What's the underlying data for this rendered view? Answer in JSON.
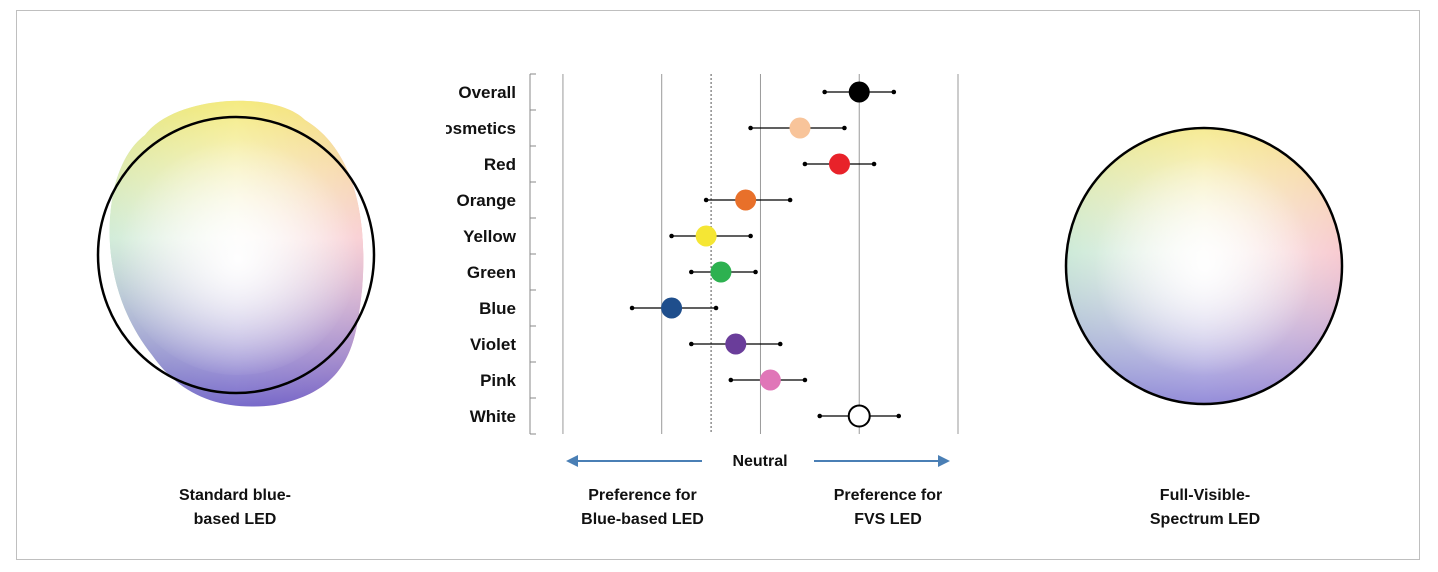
{
  "captions": {
    "left": [
      "Standard blue-",
      "based LED"
    ],
    "right": [
      "Full-Visible-",
      "Spectrum LED"
    ],
    "neutral": "Neutral",
    "pref_blue": [
      "Preference for",
      "Blue-based LED"
    ],
    "pref_fvs": [
      "Preference for",
      "FVS LED"
    ]
  },
  "colors": {
    "arrow": "#4a7fb5",
    "gridline": "#9a9a9a",
    "neutral_line": "#555555"
  },
  "chart_data": {
    "type": "scatter",
    "categories": [
      "Overall",
      "Cosmetics",
      "Red",
      "Orange",
      "Yellow",
      "Green",
      "Blue",
      "Violet",
      "Pink",
      "White"
    ],
    "values": [
      1.5,
      0.9,
      1.3,
      0.35,
      -0.05,
      0.1,
      -0.4,
      0.25,
      0.6,
      1.5
    ],
    "error_low": [
      1.15,
      0.4,
      0.95,
      -0.05,
      -0.4,
      -0.2,
      -0.8,
      -0.2,
      0.2,
      1.1
    ],
    "error_high": [
      1.85,
      1.35,
      1.65,
      0.8,
      0.4,
      0.45,
      0.05,
      0.7,
      0.95,
      1.9
    ],
    "point_colors": [
      "#000000",
      "#f8c49a",
      "#e8222a",
      "#e8702a",
      "#f5e634",
      "#2db150",
      "#1f4e8c",
      "#6a3d9a",
      "#e076b8",
      "#ffffff"
    ],
    "xlim": [
      -1.55,
      2.5
    ],
    "neutral_value": 0,
    "grid_x": [
      -1.5,
      -0.5,
      0.5,
      1.5,
      2.5
    ],
    "xlabel": "Neutral"
  }
}
